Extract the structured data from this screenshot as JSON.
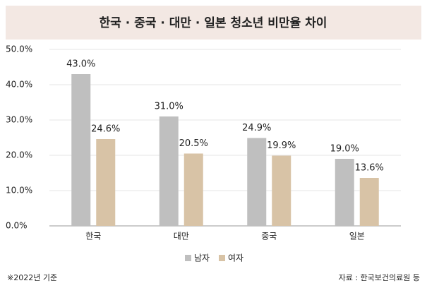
{
  "chart_data": {
    "type": "bar",
    "title": "한국 · 중국 · 대만 · 일본 청소년 비만율 차이",
    "categories": [
      "한국",
      "대만",
      "중국",
      "일본"
    ],
    "series": [
      {
        "name": "남자",
        "color": "#bfbfbf",
        "values": [
          43.0,
          31.0,
          24.9,
          19.0
        ],
        "value_labels": [
          "43.0%",
          "31.0%",
          "24.9%",
          "19.0%"
        ]
      },
      {
        "name": "여자",
        "color": "#d8c3a6",
        "values": [
          24.6,
          20.5,
          19.9,
          13.6
        ],
        "value_labels": [
          "24.6%",
          "20.5%",
          "19.9%",
          "13.6%"
        ]
      }
    ],
    "ylim": [
      0,
      50
    ],
    "yticks": [
      {
        "value": 0,
        "label": "0.0%"
      },
      {
        "value": 10,
        "label": "10.0%"
      },
      {
        "value": 20,
        "label": "20.0%"
      },
      {
        "value": 30,
        "label": "30.0%"
      },
      {
        "value": 40,
        "label": "40.0%"
      },
      {
        "value": 50,
        "label": "50.0%"
      }
    ],
    "grid": true,
    "legend": "bottom",
    "footnote": "※2022년 기준",
    "source": "자료 : 한국보건의료원 등"
  }
}
